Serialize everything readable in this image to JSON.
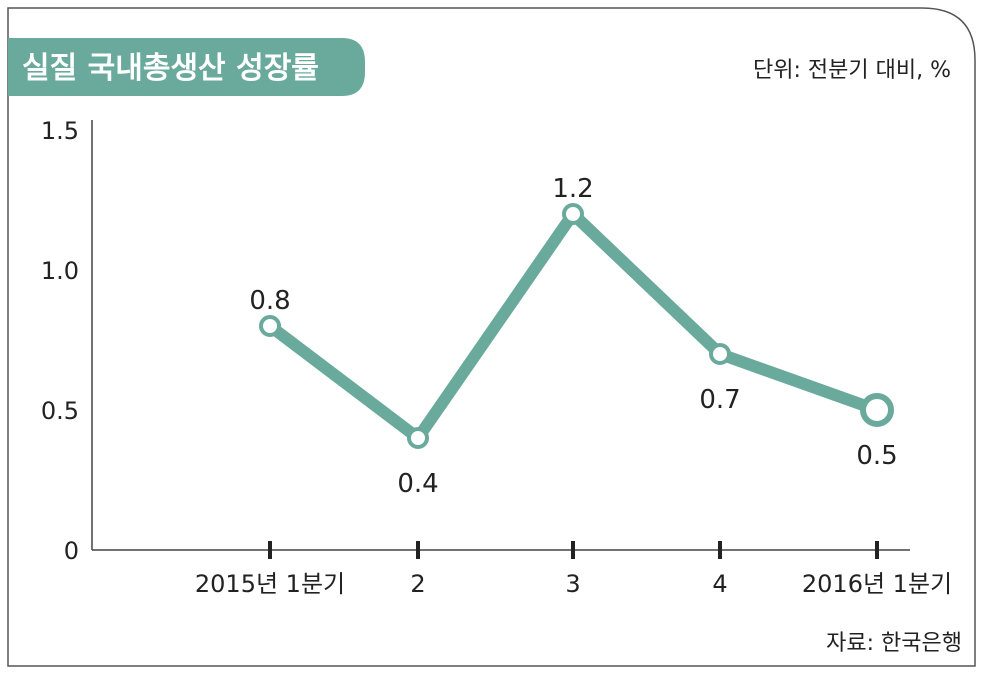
{
  "header": {
    "title": "실질 국내총생산 성장률",
    "unit": "단위: 전분기 대비, %"
  },
  "source": "자료: 한국은행",
  "colors": {
    "accent": "#6aaa9c",
    "axis": "#444444",
    "text": "#222222",
    "border": "#555555"
  },
  "chart_data": {
    "type": "line",
    "title": "실질 국내총생산 성장률",
    "categories": [
      "2015년 1분기",
      "2",
      "3",
      "4",
      "2016년 1분기"
    ],
    "series": [
      {
        "values": [
          0.8,
          0.4,
          1.2,
          0.7,
          0.5
        ]
      }
    ],
    "value_labels": [
      "0.8",
      "0.4",
      "1.2",
      "0.7",
      "0.5"
    ],
    "y_ticks": [
      "0",
      "0.5",
      "1.0",
      "1.5"
    ],
    "y_tick_values": [
      0,
      0.5,
      1.0,
      1.5
    ],
    "ylim": [
      0,
      1.5
    ],
    "grid": false,
    "legend": "none",
    "highlight_last_point": true
  }
}
